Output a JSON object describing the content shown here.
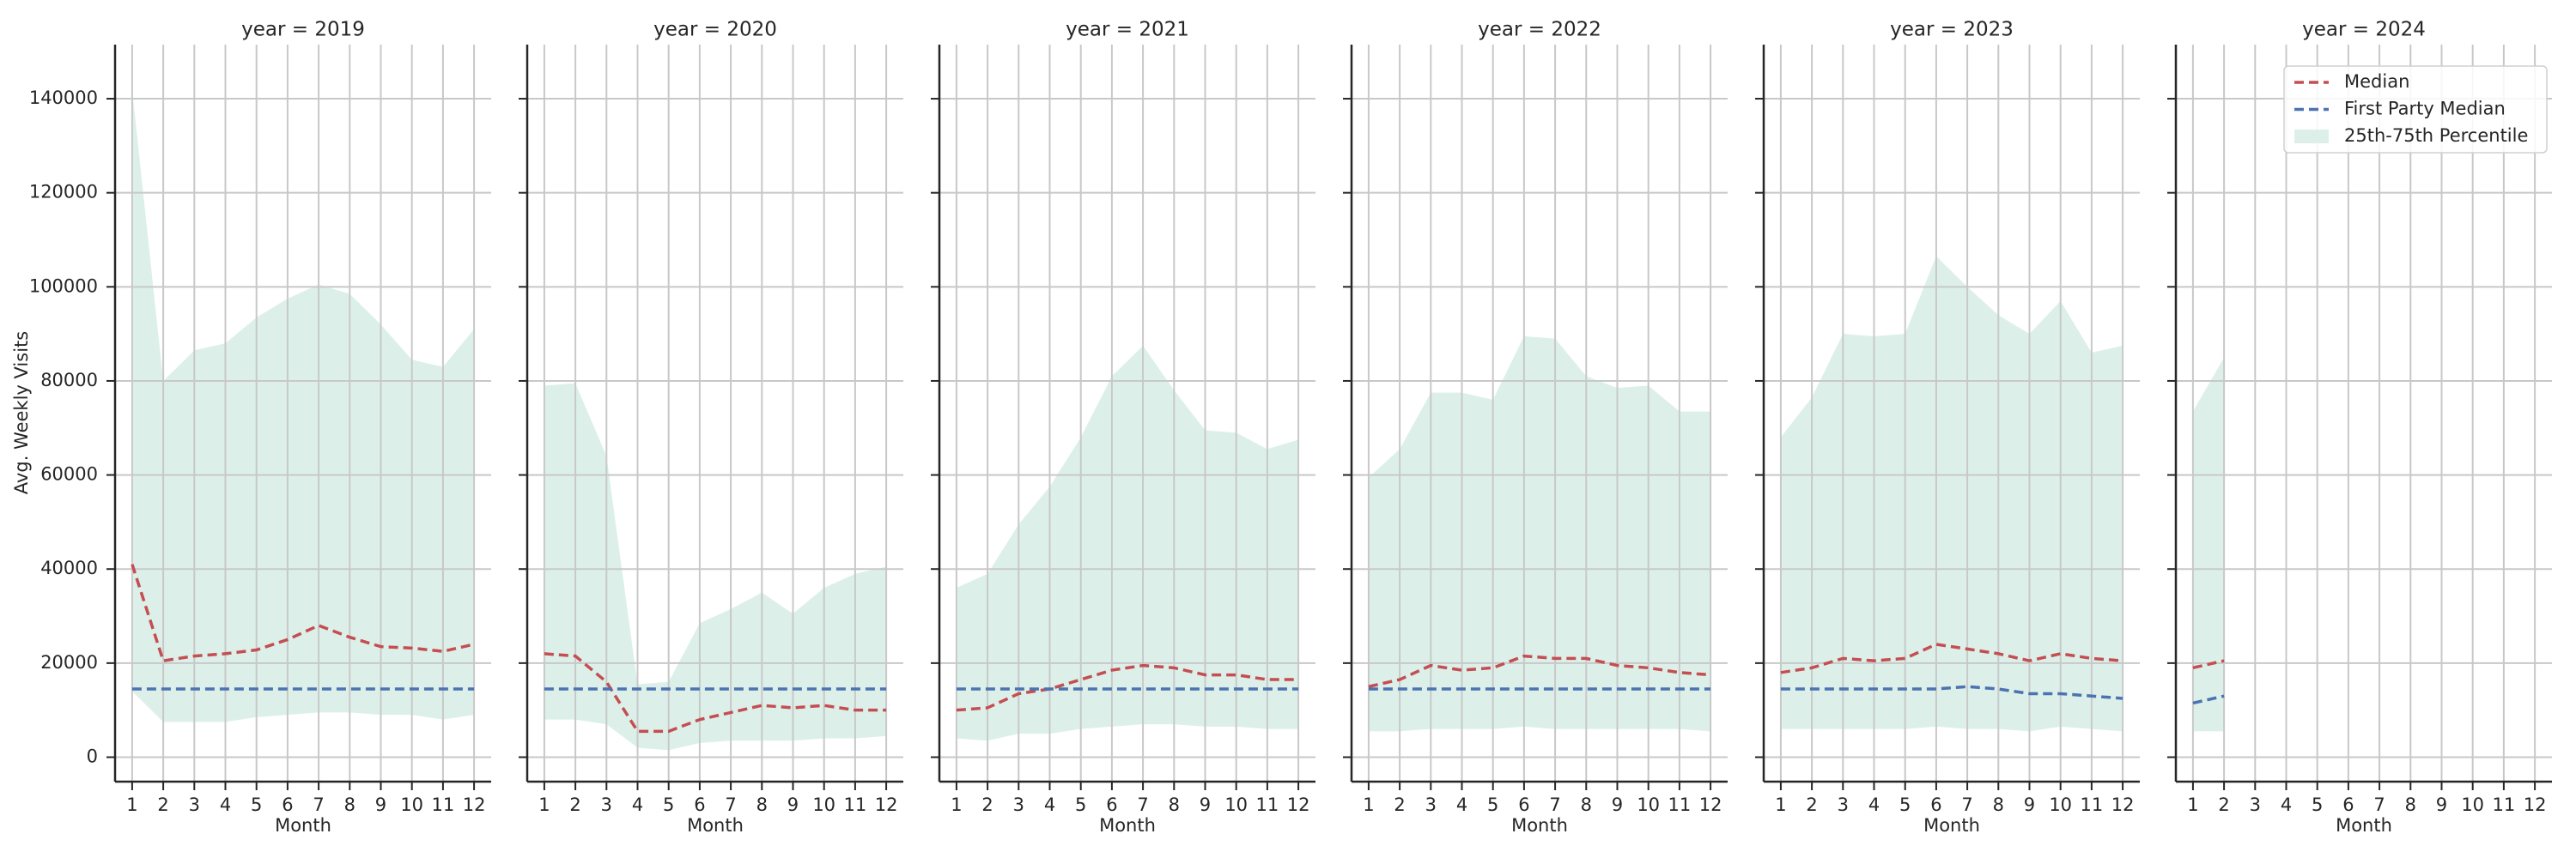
{
  "axes": {
    "ylabel": "Avg. Weekly Visits",
    "xlabel": "Month",
    "ylim": [
      -5200,
      151500
    ],
    "yticks": [
      0,
      20000,
      40000,
      60000,
      80000,
      100000,
      120000,
      140000
    ],
    "xlim": [
      0.45,
      12.55
    ],
    "xticks": [
      1,
      2,
      3,
      4,
      5,
      6,
      7,
      8,
      9,
      10,
      11,
      12
    ],
    "grid": true
  },
  "legend": {
    "loc": "upper right",
    "entries": [
      {
        "name": "Median",
        "color": "#c44e52",
        "linestyle": "--"
      },
      {
        "name": "First Party Median",
        "color": "#4c72b0",
        "linestyle": "--"
      },
      {
        "name": "25th-75th Percentile",
        "color": "#dcf0e9"
      }
    ]
  },
  "chart_data": [
    {
      "type": "line",
      "title": "year = 2019",
      "x": [
        1,
        2,
        3,
        4,
        5,
        6,
        7,
        8,
        9,
        10,
        11,
        12
      ],
      "series": [
        {
          "values": [
            41000,
            20500,
            21500,
            22000,
            22800,
            25000,
            28000,
            25500,
            23500,
            23200,
            22500,
            24000
          ]
        },
        {
          "values": [
            14500,
            14500,
            14500,
            14500,
            14500,
            14500,
            14500,
            14500,
            14500,
            14500,
            14500,
            14500
          ]
        }
      ],
      "band": {
        "lower": [
          14000,
          7500,
          7500,
          7500,
          8500,
          9000,
          9500,
          9500,
          9000,
          9000,
          8000,
          9000
        ],
        "upper": [
          142000,
          80000,
          86500,
          88000,
          93500,
          97500,
          100500,
          98500,
          92000,
          84500,
          83000,
          91000
        ]
      }
    },
    {
      "type": "line",
      "title": "year = 2020",
      "x": [
        1,
        2,
        3,
        4,
        5,
        6,
        7,
        8,
        9,
        10,
        11,
        12
      ],
      "series": [
        {
          "values": [
            22000,
            21500,
            16000,
            5500,
            5500,
            8000,
            9500,
            11000,
            10500,
            11000,
            10000,
            10000
          ]
        },
        {
          "values": [
            14500,
            14500,
            14500,
            14500,
            14500,
            14500,
            14500,
            14500,
            14500,
            14500,
            14500,
            14500
          ]
        }
      ],
      "band": {
        "lower": [
          8000,
          8000,
          7000,
          2000,
          1500,
          3000,
          3500,
          3500,
          3500,
          4000,
          4000,
          4500
        ],
        "upper": [
          79000,
          79500,
          64000,
          15500,
          16000,
          28500,
          31500,
          35000,
          30500,
          36000,
          39000,
          40500
        ]
      }
    },
    {
      "type": "line",
      "title": "year = 2021",
      "x": [
        1,
        2,
        3,
        4,
        5,
        6,
        7,
        8,
        9,
        10,
        11,
        12
      ],
      "series": [
        {
          "values": [
            10000,
            10500,
            13500,
            14500,
            16500,
            18500,
            19500,
            19000,
            17500,
            17500,
            16500,
            16500
          ]
        },
        {
          "values": [
            14500,
            14500,
            14500,
            14500,
            14500,
            14500,
            14500,
            14500,
            14500,
            14500,
            14500,
            14500
          ]
        }
      ],
      "band": {
        "lower": [
          4000,
          3500,
          5000,
          5000,
          6000,
          6500,
          7000,
          7000,
          6500,
          6500,
          6000,
          6000
        ],
        "upper": [
          36000,
          39000,
          49500,
          57500,
          68000,
          81000,
          87500,
          78000,
          69500,
          69000,
          65500,
          67500
        ]
      }
    },
    {
      "type": "line",
      "title": "year = 2022",
      "x": [
        1,
        2,
        3,
        4,
        5,
        6,
        7,
        8,
        9,
        10,
        11,
        12
      ],
      "series": [
        {
          "values": [
            15000,
            16500,
            19500,
            18500,
            19000,
            21500,
            21000,
            21000,
            19500,
            19000,
            18000,
            17500
          ]
        },
        {
          "values": [
            14500,
            14500,
            14500,
            14500,
            14500,
            14500,
            14500,
            14500,
            14500,
            14500,
            14500,
            14500
          ]
        }
      ],
      "band": {
        "lower": [
          5500,
          5500,
          6000,
          6000,
          6000,
          6500,
          6000,
          6000,
          6000,
          6000,
          6000,
          5500
        ],
        "upper": [
          59500,
          65500,
          77500,
          77500,
          76000,
          89500,
          89000,
          81000,
          78500,
          79000,
          73500,
          73500
        ]
      }
    },
    {
      "type": "line",
      "title": "year = 2023",
      "x": [
        1,
        2,
        3,
        4,
        5,
        6,
        7,
        8,
        9,
        10,
        11,
        12
      ],
      "series": [
        {
          "values": [
            18000,
            19000,
            21000,
            20500,
            21000,
            24000,
            23000,
            22000,
            20500,
            22000,
            21000,
            20500
          ]
        },
        {
          "values": [
            14500,
            14500,
            14500,
            14500,
            14500,
            14500,
            15000,
            14500,
            13500,
            13500,
            13000,
            12500
          ]
        }
      ],
      "band": {
        "lower": [
          6000,
          6000,
          6000,
          6000,
          6000,
          6500,
          6000,
          6000,
          5500,
          6500,
          6000,
          5500
        ],
        "upper": [
          68000,
          76500,
          90000,
          89500,
          90000,
          106500,
          100000,
          94000,
          90000,
          97000,
          86000,
          87500
        ]
      }
    },
    {
      "type": "line",
      "title": "year = 2024",
      "x": [
        1,
        2
      ],
      "series": [
        {
          "values": [
            19000,
            20500
          ]
        },
        {
          "values": [
            11500,
            13000
          ]
        }
      ],
      "band": {
        "lower": [
          5500,
          5500
        ],
        "upper": [
          73500,
          85000
        ]
      }
    }
  ]
}
